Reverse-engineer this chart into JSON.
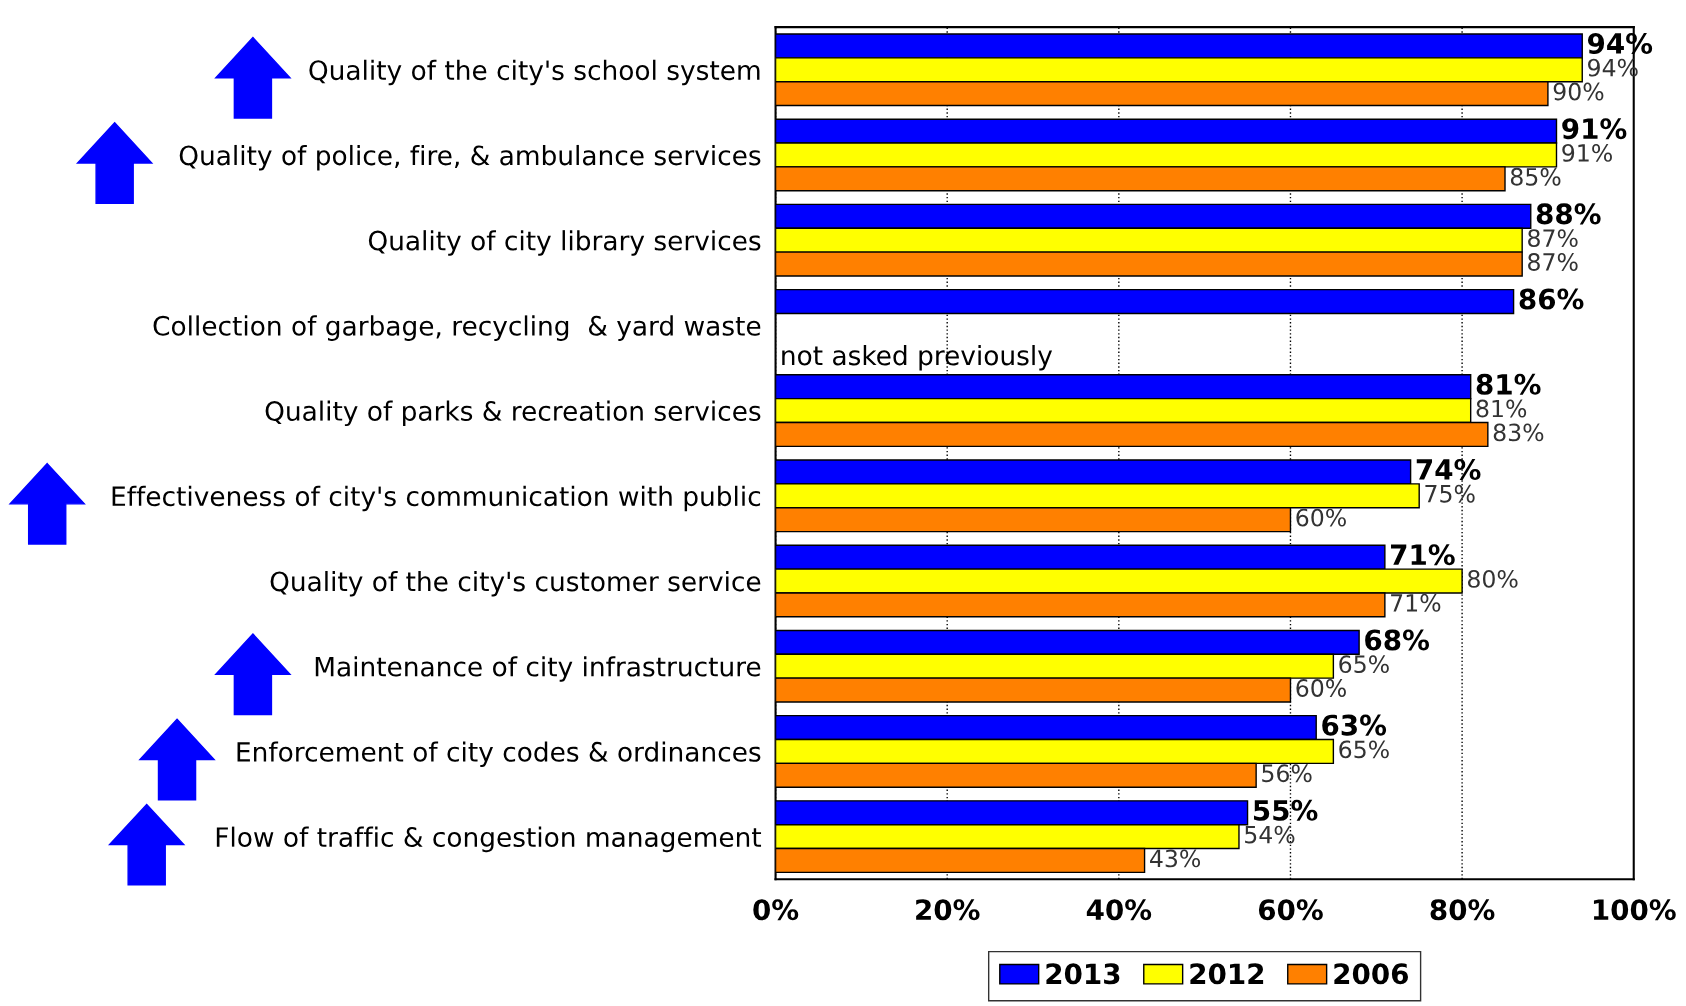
{
  "chart_data": {
    "type": "bar",
    "orientation": "horizontal",
    "categories": [
      "Quality of the city's school system",
      "Quality of police, fire, & ambulance services",
      "Quality of city library services",
      "Collection of garbage, recycling  & yard waste",
      "Quality of parks & recreation services",
      "Effectiveness of city's communication with public",
      "Quality of the city's customer service",
      "Maintenance of city infrastructure",
      "Enforcement of city codes & ordinances",
      "Flow of traffic & congestion management"
    ],
    "series": [
      {
        "name": "2013",
        "color": "#0000ff",
        "values": [
          94,
          91,
          88,
          86,
          81,
          74,
          71,
          68,
          63,
          55
        ],
        "value_labels": [
          "94%",
          "91%",
          "88%",
          "86%",
          "81%",
          "74%",
          "71%",
          "68%",
          "63%",
          "55%"
        ]
      },
      {
        "name": "2012",
        "color": "#ffff00",
        "values": [
          94,
          91,
          87,
          null,
          81,
          75,
          80,
          65,
          65,
          54
        ],
        "value_labels": [
          "94%",
          "91%",
          "87%",
          null,
          "81%",
          "75%",
          "80%",
          "65%",
          "65%",
          "54%"
        ]
      },
      {
        "name": "2006",
        "color": "#ff8000",
        "values": [
          90,
          85,
          87,
          null,
          83,
          60,
          71,
          60,
          56,
          43
        ],
        "value_labels": [
          "90%",
          "85%",
          "87%",
          null,
          "83%",
          "60%",
          "71%",
          "60%",
          "56%",
          "43%"
        ]
      }
    ],
    "annotations": [
      "not asked previously"
    ],
    "xlim": [
      0,
      100
    ],
    "xticks": [
      {
        "value": 0,
        "label": "0%"
      },
      {
        "value": 20,
        "label": "20%"
      },
      {
        "value": 40,
        "label": "40%"
      },
      {
        "value": 60,
        "label": "60%"
      },
      {
        "value": 80,
        "label": "80%"
      },
      {
        "value": 100,
        "label": "100%"
      }
    ],
    "grid": "x",
    "legend": "bottom"
  }
}
